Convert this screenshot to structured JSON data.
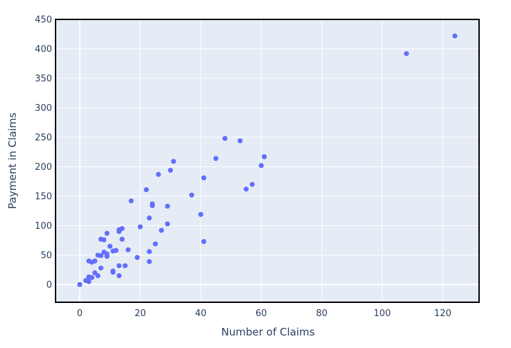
{
  "chart_data": {
    "type": "scatter",
    "title": "",
    "xlabel": "Number of Claims",
    "ylabel": "Payment in Claims",
    "xlim": [
      -8,
      132
    ],
    "ylim": [
      -30,
      450
    ],
    "xticks": [
      0,
      20,
      40,
      60,
      80,
      100,
      120
    ],
    "yticks": [
      0,
      50,
      100,
      150,
      200,
      250,
      300,
      350,
      400,
      450
    ],
    "grid": true,
    "colors": {
      "plot_bg": "#e5ecf6",
      "grid": "#ffffff",
      "marker": "#636efa",
      "frame": "#000000",
      "text": "#2a3f5f"
    },
    "series": [
      {
        "points": [
          [
            0,
            0
          ],
          [
            2,
            7
          ],
          [
            3,
            5
          ],
          [
            3,
            13
          ],
          [
            3,
            40
          ],
          [
            4,
            12
          ],
          [
            4,
            38
          ],
          [
            5,
            20
          ],
          [
            5,
            40
          ],
          [
            6,
            15
          ],
          [
            6,
            50
          ],
          [
            7,
            28
          ],
          [
            7,
            77
          ],
          [
            7,
            49
          ],
          [
            8,
            76
          ],
          [
            8,
            55
          ],
          [
            9,
            48
          ],
          [
            9,
            52
          ],
          [
            9,
            87
          ],
          [
            10,
            65
          ],
          [
            11,
            57
          ],
          [
            11,
            21
          ],
          [
            11,
            23
          ],
          [
            12,
            58
          ],
          [
            13,
            15
          ],
          [
            13,
            32
          ],
          [
            13,
            90
          ],
          [
            13,
            93
          ],
          [
            14,
            95
          ],
          [
            14,
            77
          ],
          [
            15,
            32
          ],
          [
            16,
            59
          ],
          [
            17,
            142
          ],
          [
            19,
            46
          ],
          [
            20,
            98
          ],
          [
            22,
            161
          ],
          [
            23,
            113
          ],
          [
            23,
            56
          ],
          [
            23,
            39
          ],
          [
            24,
            137
          ],
          [
            24,
            134
          ],
          [
            25,
            69
          ],
          [
            26,
            187
          ],
          [
            27,
            92
          ],
          [
            29,
            133
          ],
          [
            29,
            103
          ],
          [
            30,
            194
          ],
          [
            31,
            209
          ],
          [
            37,
            152
          ],
          [
            40,
            119
          ],
          [
            41,
            181
          ],
          [
            41,
            73
          ],
          [
            45,
            214
          ],
          [
            48,
            248
          ],
          [
            53,
            244
          ],
          [
            55,
            162
          ],
          [
            57,
            170
          ],
          [
            60,
            202
          ],
          [
            61,
            217
          ],
          [
            108,
            392
          ],
          [
            124,
            422
          ]
        ]
      }
    ]
  }
}
